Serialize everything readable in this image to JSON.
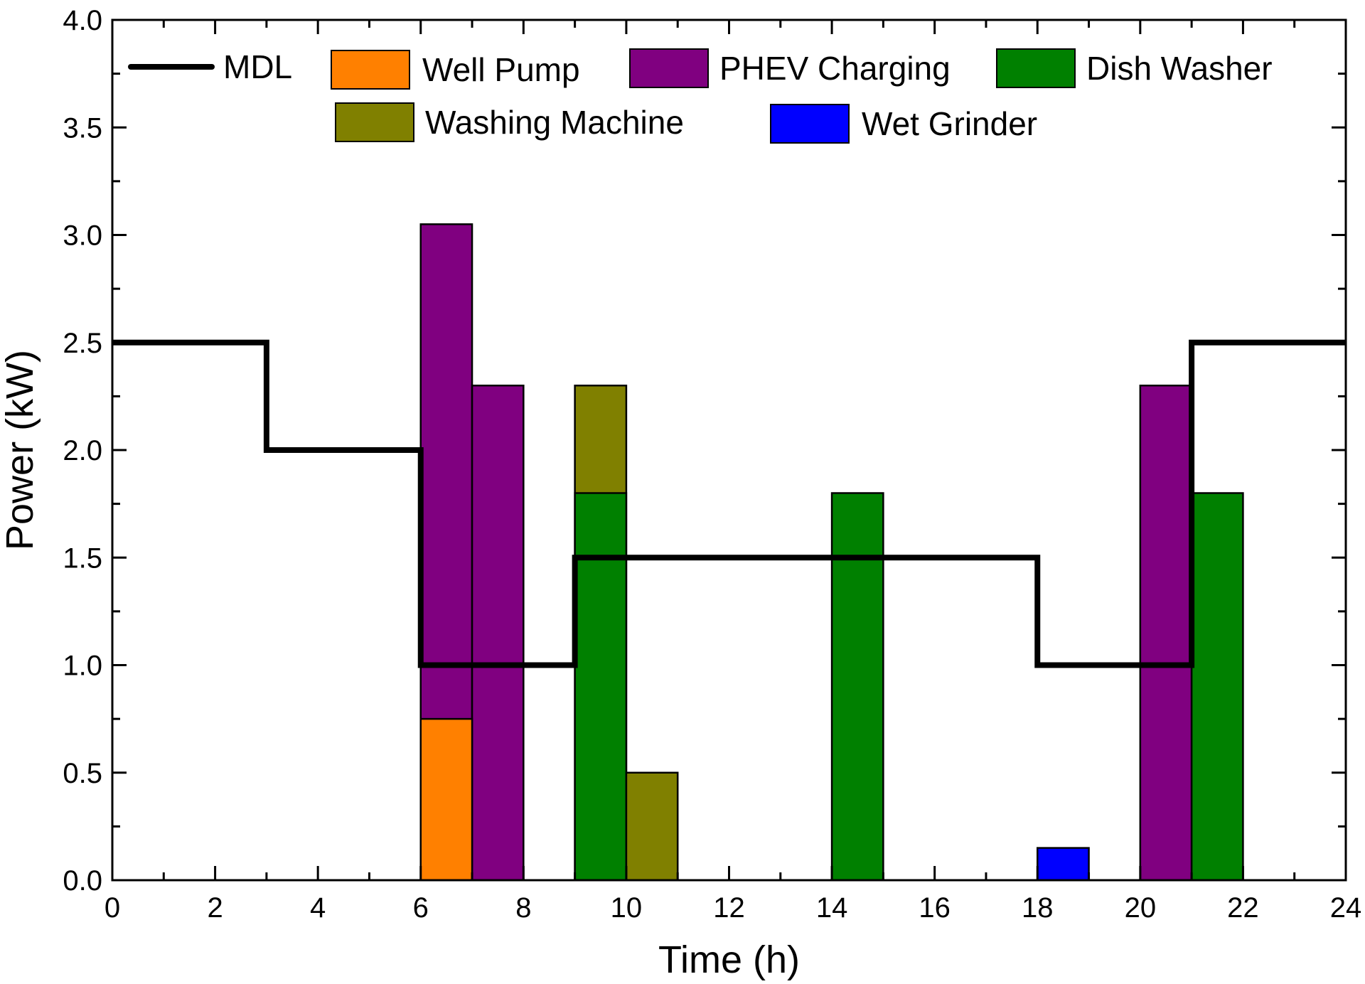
{
  "chart_data": {
    "type": "bar",
    "title": "",
    "xlabel": "Time (h)",
    "ylabel": "Power (kW)",
    "xlim": [
      0,
      24
    ],
    "ylim": [
      0,
      4.0
    ],
    "grid": false,
    "legend_position": "top",
    "x_ticks": [
      "0",
      "2",
      "4",
      "6",
      "8",
      "10",
      "12",
      "14",
      "16",
      "18",
      "20",
      "22",
      "24"
    ],
    "y_ticks": [
      "0.0",
      "0.5",
      "1.0",
      "1.5",
      "2.0",
      "2.5",
      "3.0",
      "3.5",
      "4.0"
    ],
    "series": [
      {
        "name": "Well Pump",
        "color": "#ff8000",
        "bars": [
          {
            "start": 6,
            "end": 7,
            "value": 0.75
          }
        ]
      },
      {
        "name": "PHEV Charging",
        "color": "#800080",
        "bars": [
          {
            "start": 6,
            "end": 7,
            "value": 3.05
          },
          {
            "start": 7,
            "end": 8,
            "value": 2.3
          },
          {
            "start": 20,
            "end": 21,
            "value": 2.3
          }
        ]
      },
      {
        "name": "Dish Washer",
        "color": "#008000",
        "bars": [
          {
            "start": 9,
            "end": 10,
            "value": 1.8
          },
          {
            "start": 14,
            "end": 15,
            "value": 1.8
          },
          {
            "start": 21,
            "end": 22,
            "value": 1.8
          }
        ]
      },
      {
        "name": "Washing Machine",
        "color": "#808000",
        "bars": [
          {
            "start": 9,
            "end": 10,
            "value": 2.3
          },
          {
            "start": 10,
            "end": 11,
            "value": 0.5
          }
        ]
      },
      {
        "name": "Wet Grinder",
        "color": "#0000ff",
        "bars": [
          {
            "start": 18,
            "end": 19,
            "value": 0.15
          }
        ]
      }
    ],
    "draw_order": [
      [
        "PHEV Charging",
        0
      ],
      [
        "PHEV Charging",
        1
      ],
      [
        "Well Pump",
        0
      ],
      [
        "Washing Machine",
        0
      ],
      [
        "Dish Washer",
        0
      ],
      [
        "Washing Machine",
        1
      ],
      [
        "Dish Washer",
        1
      ],
      [
        "Wet Grinder",
        0
      ],
      [
        "PHEV Charging",
        2
      ],
      [
        "Dish Washer",
        2
      ]
    ],
    "lines": [
      {
        "name": "MDL",
        "color": "#000000",
        "style": "step",
        "points": [
          [
            0,
            2.5
          ],
          [
            3,
            2.5
          ],
          [
            3,
            2.0
          ],
          [
            6,
            2.0
          ],
          [
            6,
            1.0
          ],
          [
            9,
            1.0
          ],
          [
            9,
            1.5
          ],
          [
            18,
            1.5
          ],
          [
            18,
            1.0
          ],
          [
            21,
            1.0
          ],
          [
            21,
            2.5
          ],
          [
            24,
            2.5
          ]
        ]
      }
    ],
    "legend": [
      {
        "label": "MDL",
        "kind": "line",
        "color": "#000000"
      },
      {
        "label": "Well Pump",
        "kind": "box",
        "color": "#ff8000"
      },
      {
        "label": "PHEV Charging",
        "kind": "box",
        "color": "#800080"
      },
      {
        "label": "Dish Washer",
        "kind": "box",
        "color": "#008000"
      },
      {
        "label": "Washing Machine",
        "kind": "box",
        "color": "#808000"
      },
      {
        "label": "Wet Grinder",
        "kind": "box",
        "color": "#0000ff"
      }
    ]
  }
}
